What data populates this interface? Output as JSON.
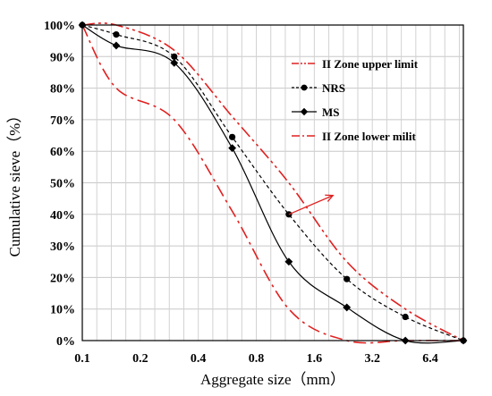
{
  "chart_data": {
    "type": "line",
    "title": "",
    "xlabel": "Aggregate size（mm）",
    "ylabel": "Cumulative sieve（%）",
    "x_scale": "log2",
    "xlim": [
      0.1,
      9.5
    ],
    "ylim": [
      0,
      100
    ],
    "x_ticks": [
      0.1,
      0.2,
      0.4,
      0.8,
      1.6,
      3.2,
      6.4
    ],
    "x_tick_labels": [
      "0.1",
      "0.2",
      "0.4",
      "0.8",
      "1.6",
      "3.2",
      "6.4"
    ],
    "y_ticks": [
      0,
      10,
      20,
      30,
      40,
      50,
      60,
      70,
      80,
      90,
      100
    ],
    "y_tick_labels": [
      "0%",
      "10%",
      "20%",
      "30%",
      "40%",
      "50%",
      "60%",
      "70%",
      "80%",
      "90%",
      "100%"
    ],
    "grid": true,
    "legend_position": "top-right",
    "series": [
      {
        "name": "II Zone upper limit",
        "color": "#e02020",
        "line": "dash-dot-dot",
        "marker": "none",
        "x": [
          0.1,
          0.15,
          0.3,
          0.6,
          1.18,
          2.36,
          4.75,
          9.5
        ],
        "y": [
          100,
          100,
          92,
          71,
          50,
          25,
          10,
          0
        ]
      },
      {
        "name": "NRS",
        "color": "#000000",
        "line": "dashed",
        "marker": "circle",
        "x": [
          0.1,
          0.15,
          0.3,
          0.6,
          1.18,
          2.36,
          4.75,
          9.5
        ],
        "y": [
          100,
          97,
          90,
          64.5,
          40,
          19.5,
          7.5,
          0
        ]
      },
      {
        "name": "MS",
        "color": "#000000",
        "line": "solid",
        "marker": "diamond",
        "x": [
          0.1,
          0.15,
          0.3,
          0.6,
          1.18,
          2.36,
          4.75,
          9.5
        ],
        "y": [
          100,
          93.5,
          88,
          61,
          25,
          10.5,
          0,
          0
        ]
      },
      {
        "name": "II Zone lower milit",
        "color": "#e02020",
        "line": "dash-dot",
        "marker": "none",
        "x": [
          0.1,
          0.15,
          0.3,
          0.6,
          1.18,
          2.36,
          4.75,
          9.5
        ],
        "y": [
          100,
          80,
          70,
          41,
          10,
          0,
          0,
          0
        ]
      }
    ],
    "annotation": {
      "type": "arrow",
      "color": "#e02020",
      "from": [
        1.18,
        40
      ],
      "to": [
        2.0,
        46
      ]
    }
  }
}
